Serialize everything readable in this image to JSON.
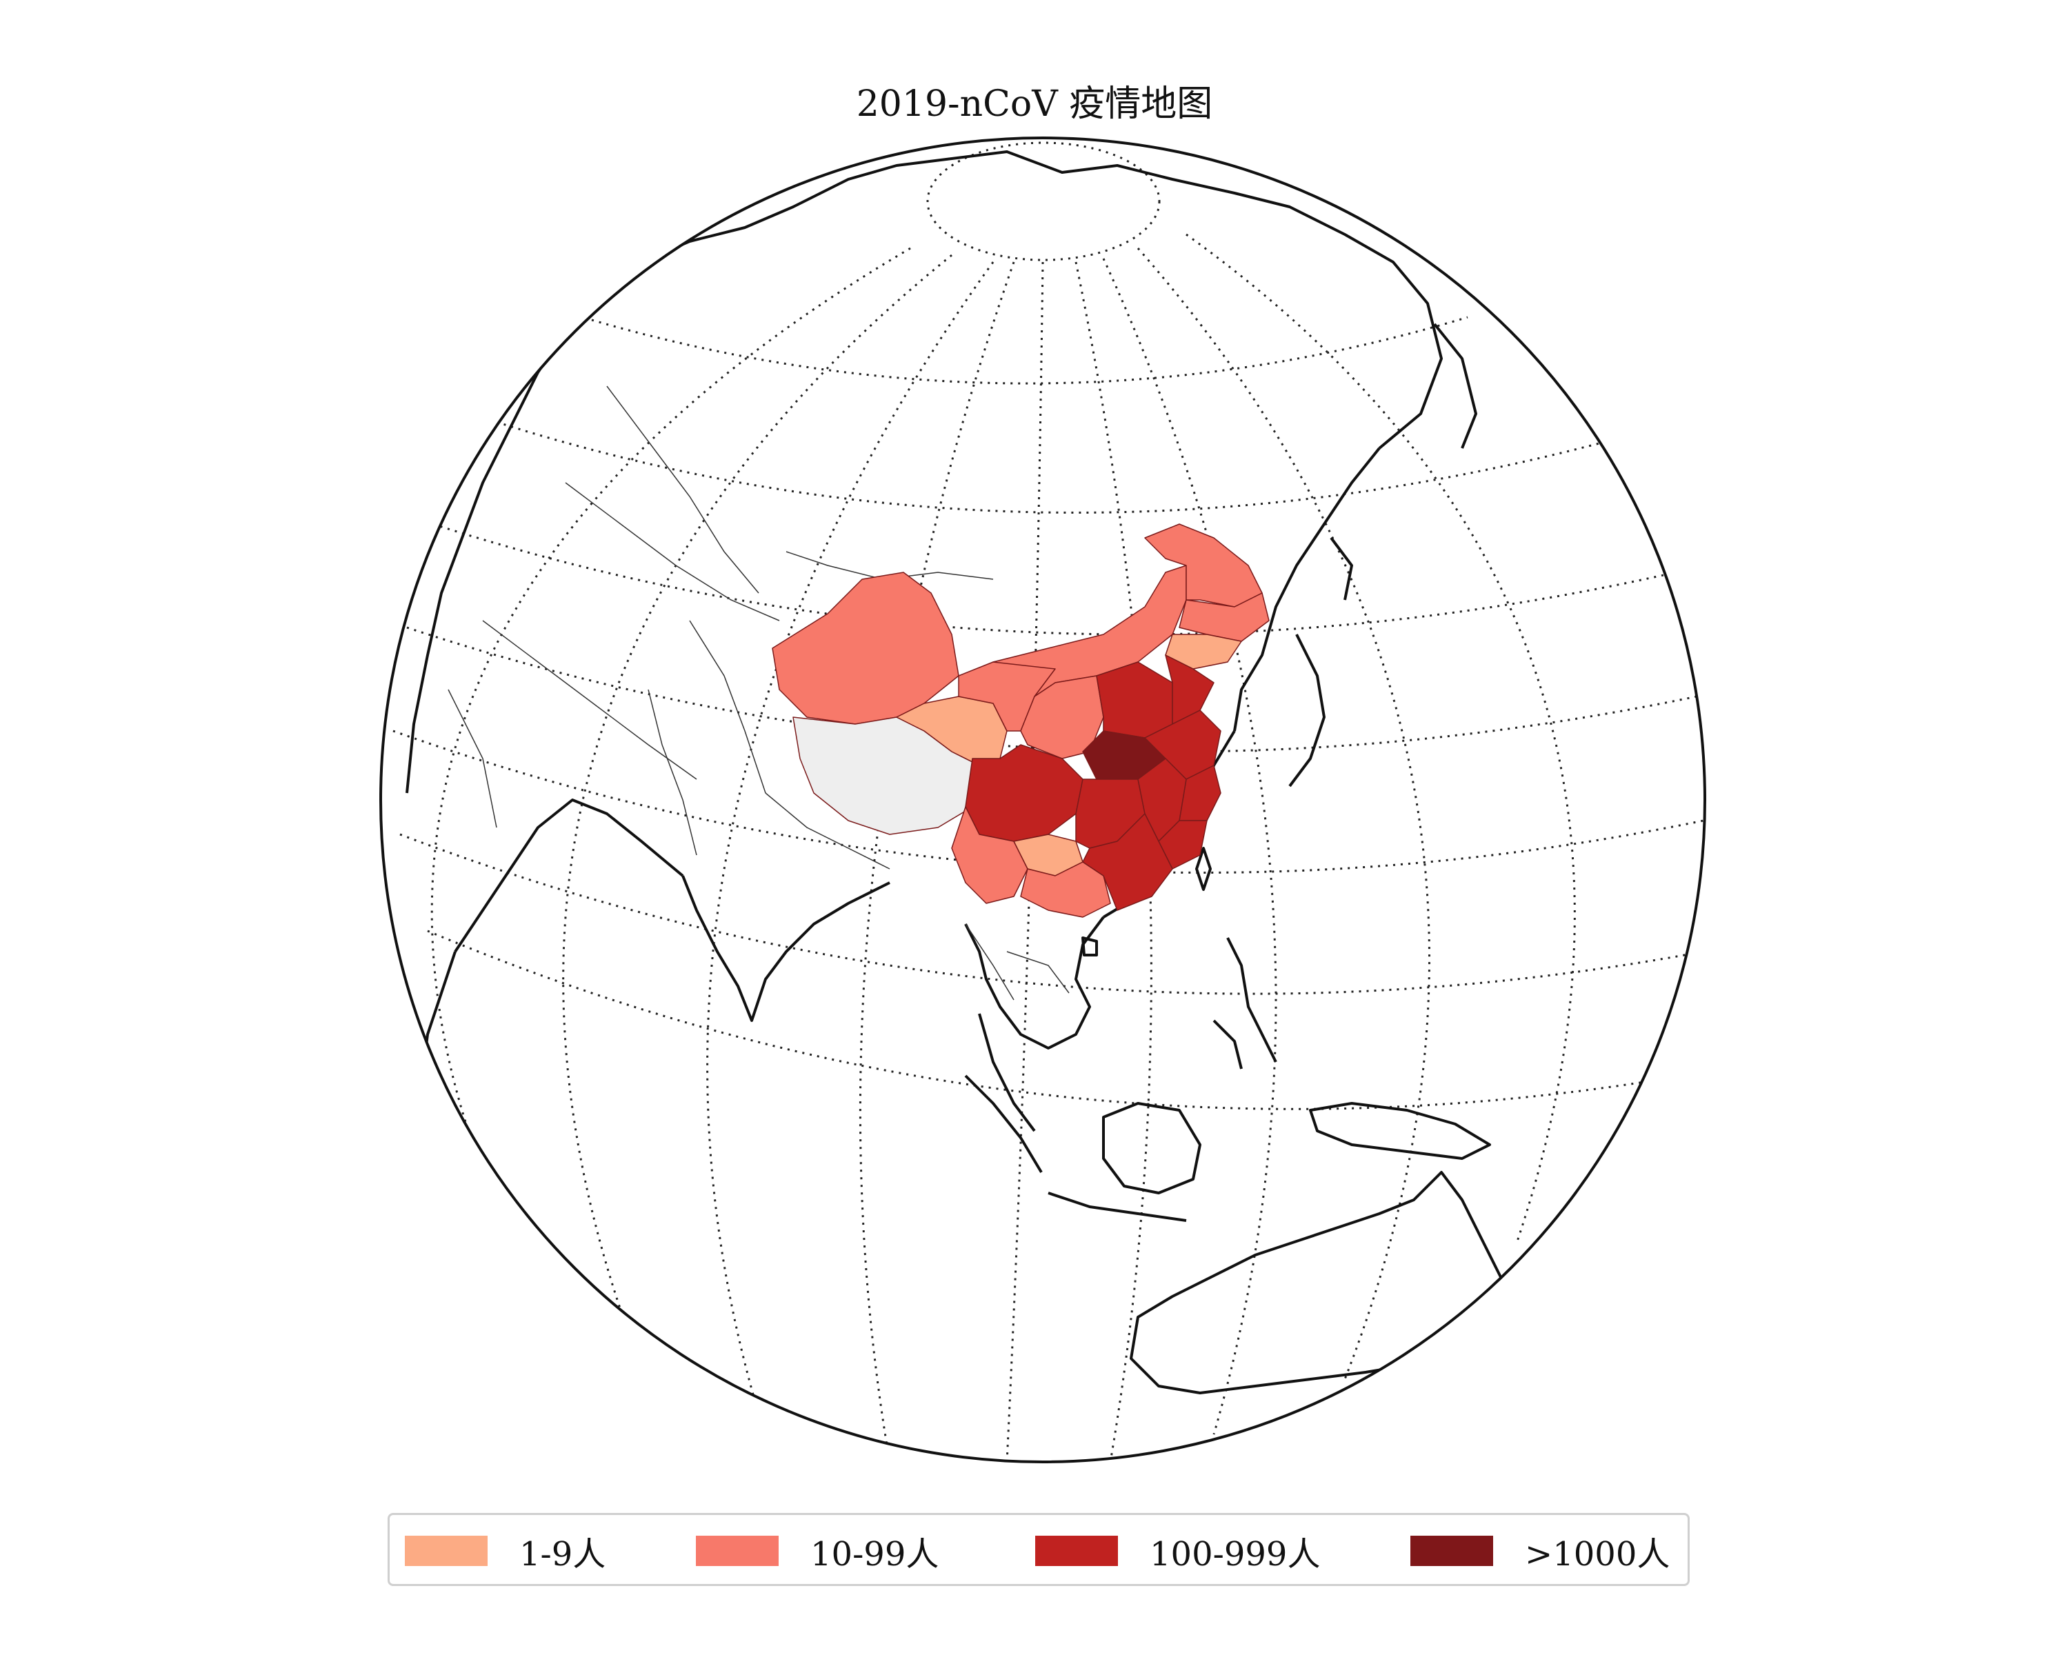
{
  "title": "2019-nCoV 疫情地图",
  "map": {
    "projection": "orthographic",
    "graticule": "dotted",
    "region_colors": {
      "no_data": "#eeeeee",
      "outside": "#ffffff"
    },
    "provinces_shown": [
      {
        "name": "Xinjiang",
        "category": "10-99人"
      },
      {
        "name": "Tibet",
        "category": "no data"
      },
      {
        "name": "Qinghai",
        "category": "1-9人"
      },
      {
        "name": "Gansu",
        "category": "10-99人"
      },
      {
        "name": "Inner Mongolia",
        "category": "10-99人"
      },
      {
        "name": "Heilongjiang",
        "category": "10-99人"
      },
      {
        "name": "Jilin",
        "category": "10-99人"
      },
      {
        "name": "Liaoning",
        "category": "1-9人"
      },
      {
        "name": "Sichuan",
        "category": "100-999人"
      },
      {
        "name": "Yunnan",
        "category": "10-99人"
      },
      {
        "name": "Guizhou",
        "category": "1-9人"
      },
      {
        "name": "Guangxi",
        "category": "10-99人"
      },
      {
        "name": "Hubei",
        "category": ">1000人"
      },
      {
        "name": "Hunan",
        "category": "100-999人"
      },
      {
        "name": "Henan",
        "category": "100-999人"
      },
      {
        "name": "Shandong",
        "category": "100-999人"
      },
      {
        "name": "Jiangsu",
        "category": "100-999人"
      },
      {
        "name": "Zhejiang",
        "category": "100-999人"
      },
      {
        "name": "Guangdong",
        "category": "100-999人"
      },
      {
        "name": "Jiangxi",
        "category": "100-999人"
      }
    ]
  },
  "legend": {
    "items": [
      {
        "label": "1-9人",
        "color": "#fcab84"
      },
      {
        "label": "10-99人",
        "color": "#f7796a"
      },
      {
        "label": "100-999人",
        "color": "#c02220"
      },
      {
        "label": ">1000人",
        "color": "#7f1719"
      }
    ]
  }
}
